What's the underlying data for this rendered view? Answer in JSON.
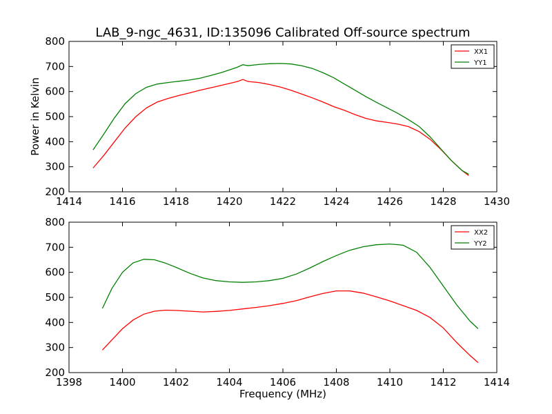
{
  "title": "LAB_9-ngc_4631, ID:135096 Calibrated Off-source spectrum",
  "chart_data": [
    {
      "type": "line",
      "ylabel": "Power in Kelvin",
      "xlabel": "",
      "xlim": [
        1414,
        1430
      ],
      "ylim": [
        200,
        800
      ],
      "xticks": [
        1414,
        1416,
        1418,
        1420,
        1422,
        1424,
        1426,
        1428,
        1430
      ],
      "yticks": [
        200,
        300,
        400,
        500,
        600,
        700,
        800
      ],
      "legend": "top-right",
      "grid": false,
      "series": [
        {
          "name": "XX1",
          "color": "#ff0000",
          "x": [
            1414.9,
            1415.3,
            1415.7,
            1416.1,
            1416.5,
            1416.9,
            1417.3,
            1417.7,
            1418.1,
            1418.5,
            1418.9,
            1419.3,
            1419.7,
            1420.1,
            1420.3,
            1420.5,
            1420.7,
            1421.1,
            1421.5,
            1421.9,
            1422.3,
            1422.7,
            1423.1,
            1423.5,
            1423.9,
            1424.3,
            1424.7,
            1425.1,
            1425.5,
            1425.9,
            1426.3,
            1426.7,
            1427.1,
            1427.5,
            1427.9,
            1428.3,
            1428.7,
            1428.95
          ],
          "values": [
            295,
            345,
            400,
            455,
            500,
            535,
            558,
            572,
            584,
            594,
            605,
            615,
            625,
            635,
            640,
            648,
            640,
            636,
            628,
            618,
            605,
            590,
            575,
            558,
            540,
            525,
            508,
            493,
            483,
            477,
            470,
            460,
            440,
            410,
            370,
            325,
            285,
            265
          ]
        },
        {
          "name": "YY1",
          "color": "#008000",
          "x": [
            1414.9,
            1415.3,
            1415.7,
            1416.1,
            1416.5,
            1416.9,
            1417.3,
            1417.7,
            1418.1,
            1418.5,
            1418.9,
            1419.3,
            1419.7,
            1420.1,
            1420.3,
            1420.5,
            1420.7,
            1421.1,
            1421.5,
            1421.9,
            1422.3,
            1422.7,
            1423.1,
            1423.5,
            1423.9,
            1424.3,
            1424.7,
            1425.1,
            1425.5,
            1425.9,
            1426.3,
            1426.7,
            1427.1,
            1427.5,
            1427.9,
            1428.3,
            1428.7,
            1428.95
          ],
          "values": [
            367,
            430,
            495,
            552,
            592,
            617,
            630,
            636,
            641,
            646,
            653,
            664,
            676,
            690,
            697,
            707,
            703,
            708,
            711,
            712,
            710,
            703,
            692,
            675,
            655,
            630,
            605,
            580,
            557,
            535,
            513,
            488,
            460,
            420,
            372,
            325,
            285,
            270
          ]
        }
      ]
    },
    {
      "type": "line",
      "xlabel": "Frequency (MHz)",
      "ylabel": "",
      "xlim": [
        1398,
        1414
      ],
      "ylim": [
        200,
        800
      ],
      "xticks": [
        1398,
        1400,
        1402,
        1404,
        1406,
        1408,
        1410,
        1412,
        1414
      ],
      "yticks": [
        200,
        300,
        400,
        500,
        600,
        700,
        800
      ],
      "legend": "top-right",
      "grid": false,
      "series": [
        {
          "name": "XX2",
          "color": "#ff0000",
          "x": [
            1399.25,
            1399.6,
            1400.0,
            1400.4,
            1400.8,
            1401.2,
            1401.6,
            1402.0,
            1402.5,
            1403.0,
            1403.5,
            1404.0,
            1404.5,
            1405.0,
            1405.5,
            1406.0,
            1406.5,
            1407.0,
            1407.5,
            1408.0,
            1408.5,
            1409.0,
            1409.5,
            1410.0,
            1410.5,
            1411.0,
            1411.5,
            1412.0,
            1412.5,
            1413.0,
            1413.3
          ],
          "values": [
            290,
            330,
            375,
            410,
            433,
            445,
            449,
            448,
            445,
            442,
            444,
            448,
            454,
            460,
            467,
            476,
            487,
            502,
            516,
            526,
            526,
            517,
            502,
            486,
            467,
            448,
            420,
            378,
            320,
            268,
            240
          ]
        },
        {
          "name": "YY2",
          "color": "#008000",
          "x": [
            1399.25,
            1399.6,
            1400.0,
            1400.4,
            1400.8,
            1401.2,
            1401.6,
            1402.0,
            1402.5,
            1403.0,
            1403.5,
            1404.0,
            1404.5,
            1405.0,
            1405.5,
            1406.0,
            1406.5,
            1407.0,
            1407.5,
            1408.0,
            1408.5,
            1409.0,
            1409.5,
            1410.0,
            1410.5,
            1411.0,
            1411.5,
            1412.0,
            1412.5,
            1413.0,
            1413.3
          ],
          "values": [
            456,
            535,
            600,
            638,
            652,
            650,
            637,
            620,
            597,
            578,
            567,
            562,
            560,
            562,
            567,
            576,
            593,
            617,
            643,
            667,
            688,
            702,
            710,
            713,
            708,
            680,
            620,
            545,
            470,
            405,
            375
          ]
        }
      ]
    }
  ]
}
